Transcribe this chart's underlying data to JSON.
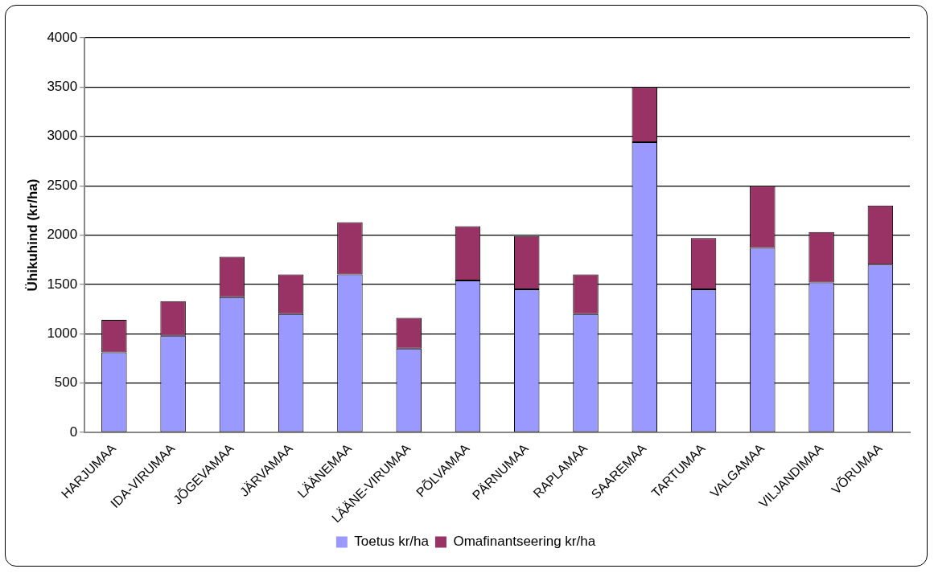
{
  "chart_data": {
    "type": "bar",
    "stacked": true,
    "ylabel": "Ühikuhind (kr/ha)",
    "categories": [
      "HARJUMAA",
      "IDA-VIRUMAA",
      "JÕGEVAMAA",
      "JÄRVAMAA",
      "LÄÄNEMAA",
      "LÄÄNE-VIRUMAA",
      "PÕLVAMAA",
      "PÄRNUMAA",
      "RAPLAMAA",
      "SAAREMAA",
      "TARTUMAA",
      "VALGAMAA",
      "VILJANDIMAA",
      "VÕRUMAA"
    ],
    "series": [
      {
        "name": "Toetus kr/ha",
        "color": "#9999ff",
        "values": [
          810,
          980,
          1370,
          1200,
          1600,
          850,
          1540,
          1450,
          1200,
          2940,
          1450,
          1870,
          1520,
          1700
        ]
      },
      {
        "name": "Omafinantseering kr/ha",
        "color": "#993366",
        "values": [
          330,
          350,
          410,
          400,
          530,
          310,
          550,
          540,
          400,
          560,
          520,
          630,
          510,
          600
        ]
      }
    ],
    "ylim": [
      0,
      4000
    ],
    "yticks": [
      0,
      500,
      1000,
      1500,
      2000,
      2500,
      3000,
      3500,
      4000
    ],
    "grid": "y",
    "legend": "bottom"
  }
}
